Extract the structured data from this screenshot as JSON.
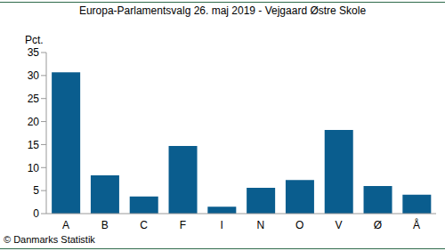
{
  "chart_data": {
    "type": "bar",
    "title": "Europa-Parlamentsvalg 26. maj 2019 - Vejgaard Østre Skole",
    "ylabel": "Pct.",
    "annotation": "© Danmarks Statistik",
    "categories": [
      "A",
      "B",
      "C",
      "F",
      "I",
      "N",
      "O",
      "V",
      "Ø",
      "Å"
    ],
    "values": [
      30.7,
      8.3,
      3.7,
      14.7,
      1.5,
      5.6,
      7.3,
      18.2,
      6.0,
      4.1
    ],
    "color": "#0a5d8e",
    "ylim": [
      0,
      35
    ],
    "yticks": [
      0,
      5,
      10,
      15,
      20,
      25,
      30,
      35
    ],
    "grid": false
  }
}
